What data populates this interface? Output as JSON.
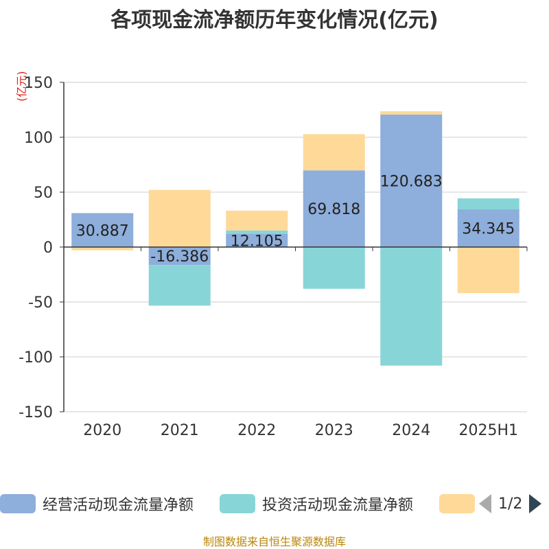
{
  "title": "各项现金流净额历年变化情况(亿元)",
  "unit_label": "(亿元)",
  "footer": "制图数据来自恒生聚源数据库",
  "legend": {
    "items": [
      {
        "label": "经营活动现金流量净额",
        "color": "#8eaedb"
      },
      {
        "label": "投资活动现金流量净额",
        "color": "#88d5d8"
      },
      {
        "label": "",
        "color": "#fed998"
      }
    ],
    "page_text": "1/2"
  },
  "colors": {
    "grid": "#cccccc",
    "axis": "#333333",
    "label": "#222222"
  },
  "chart_data": {
    "type": "bar",
    "stacked": true,
    "categories": [
      "2020",
      "2021",
      "2022",
      "2023",
      "2024",
      "2025H1"
    ],
    "ylim": [
      -150,
      150
    ],
    "yticks": [
      150,
      100,
      50,
      0,
      -50,
      -100,
      -150
    ],
    "grid": true,
    "legend_position": "bottom",
    "series": [
      {
        "name": "经营活动现金流量净额",
        "color": "#8eaedb",
        "values": [
          30.887,
          -16.386,
          12.105,
          69.818,
          120.683,
          34.345
        ],
        "labels": [
          "30.887",
          "-16.386",
          "12.105",
          "69.818",
          "120.683",
          "34.345"
        ]
      },
      {
        "name": "投资活动现金流量净额",
        "color": "#88d5d8",
        "values": [
          0,
          -37,
          3,
          -38,
          -108,
          10
        ]
      },
      {
        "name": "",
        "color": "#fed998",
        "values": [
          -3,
          52,
          18,
          33,
          3,
          -42
        ]
      }
    ]
  }
}
